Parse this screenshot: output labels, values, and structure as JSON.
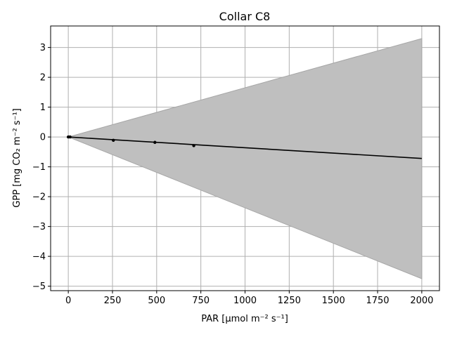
{
  "chart_data": {
    "type": "line",
    "title": "Collar C8",
    "xlabel": "PAR [μmol m⁻² s⁻¹]",
    "ylabel": "GPP [mg CO₂ m⁻² s⁻¹]",
    "xlim": [
      -100,
      2100
    ],
    "ylim": [
      -5.15,
      3.72
    ],
    "xticks": [
      0,
      250,
      500,
      750,
      1000,
      1250,
      1500,
      1750,
      2000
    ],
    "yticks": [
      3,
      2,
      1,
      0,
      -1,
      -2,
      -3,
      -4,
      -5
    ],
    "ytick_labels": [
      "3",
      "2",
      "1",
      "0",
      "−1",
      "−2",
      "−3",
      "−4",
      "−5"
    ],
    "grid": true,
    "fit_line": {
      "x": [
        0,
        2000
      ],
      "y": [
        0.0,
        -0.72
      ],
      "color": "#000000"
    },
    "confidence_band": {
      "x": [
        0,
        2000
      ],
      "upper": [
        0.0,
        3.3
      ],
      "lower": [
        0.0,
        -4.75
      ],
      "color": "#bfbfbf"
    },
    "points": [
      {
        "x": 0,
        "y": 0.0
      },
      {
        "x": 10,
        "y": 0.0
      },
      {
        "x": 255,
        "y": -0.11
      },
      {
        "x": 490,
        "y": -0.18
      },
      {
        "x": 710,
        "y": -0.29
      }
    ]
  }
}
